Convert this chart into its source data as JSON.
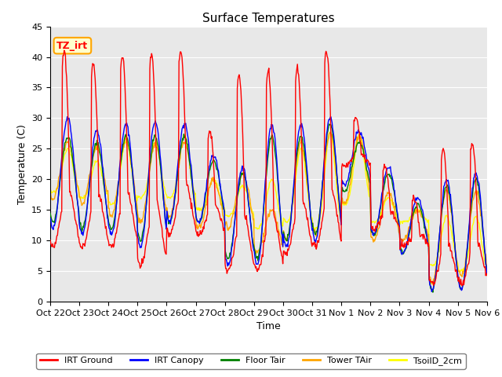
{
  "title": "Surface Temperatures",
  "xlabel": "Time",
  "ylabel": "Temperature (C)",
  "ylim": [
    0,
    45
  ],
  "annotation_text": "TZ_irt",
  "legend_entries": [
    "IRT Ground",
    "IRT Canopy",
    "Floor Tair",
    "Tower TAir",
    "TsoilD_2cm"
  ],
  "line_colors": [
    "red",
    "blue",
    "green",
    "orange",
    "yellow"
  ],
  "tick_labels": [
    "Oct 22",
    "Oct 23",
    "Oct 24",
    "Oct 25",
    "Oct 26",
    "Oct 27",
    "Oct 28",
    "Oct 29",
    "Oct 30",
    "Oct 31",
    "Nov 1",
    "Nov 2",
    "Nov 3",
    "Nov 4",
    "Nov 5",
    "Nov 6"
  ],
  "fig_bg": "#ffffff",
  "plot_bg": "#e8e8e8",
  "grid_color": "#ffffff",
  "yticks": [
    0,
    5,
    10,
    15,
    20,
    25,
    30,
    35,
    40,
    45
  ],
  "title_fontsize": 11,
  "axis_label_fontsize": 9,
  "tick_fontsize": 8,
  "legend_fontsize": 8,
  "annot_fontsize": 9
}
